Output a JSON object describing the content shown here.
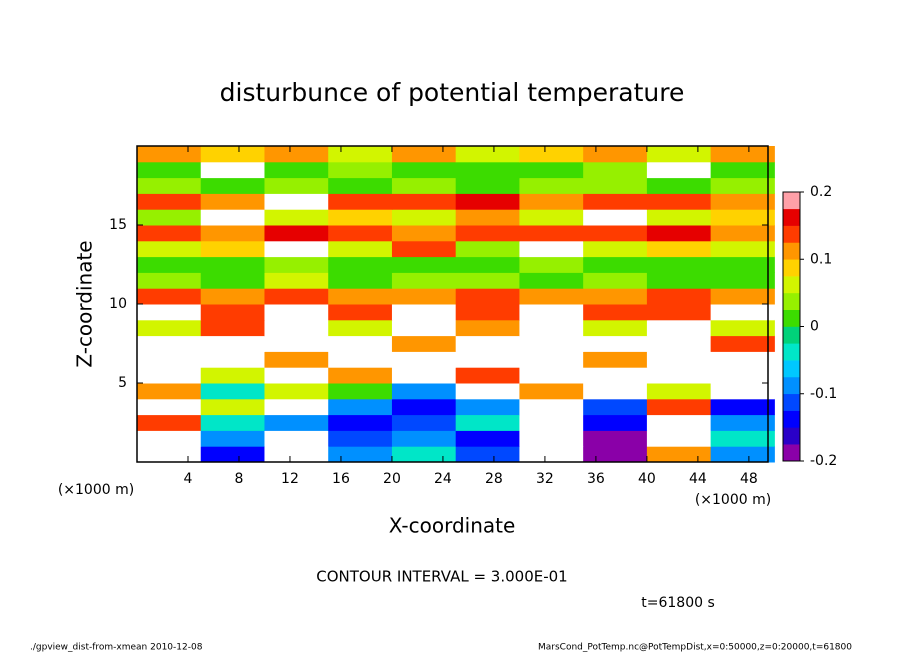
{
  "chart_data": {
    "type": "heatmap",
    "title": "disturbunce of potential temperature",
    "xlabel": "X-coordinate",
    "ylabel": "Z-coordinate",
    "x_unit_label": "(×1000 m)",
    "y_unit_label": "(×1000 m)",
    "contour_interval": "CONTOUR INTERVAL = 3.000E-01",
    "time_label": "t=61800 s",
    "footer_left": "./gpview_dist-from-xmean  2010-12-08",
    "footer_right": "MarsCond_PotTemp.nc@PotTempDist,x=0:50000,z=0:20000,t=61800",
    "xlim": [
      0,
      49.5
    ],
    "ylim": [
      0,
      20
    ],
    "xticks": [
      4,
      8,
      12,
      16,
      20,
      24,
      28,
      32,
      36,
      40,
      44,
      48
    ],
    "yticks": [
      5,
      10,
      15
    ],
    "x": [
      2.5,
      7.5,
      12.5,
      17.5,
      22.5,
      27.5,
      32.5,
      37.5,
      42.5,
      47.5
    ],
    "y": [
      0.5,
      1.5,
      2.5,
      3.5,
      4.5,
      5.5,
      6.5,
      7.5,
      8.5,
      9.5,
      10.5,
      11.5,
      12.5,
      13.5,
      14.5,
      15.5,
      16.5,
      17.5,
      18.5,
      19.5
    ],
    "z": [
      [
        0.22,
        -0.15,
        0.22,
        -0.1,
        -0.05,
        -0.12,
        0.22,
        -0.2,
        0.1,
        -0.1
      ],
      [
        0.22,
        -0.1,
        0.22,
        -0.12,
        -0.1,
        -0.15,
        0.22,
        -0.18,
        0.22,
        -0.05
      ],
      [
        0.15,
        -0.05,
        -0.1,
        -0.15,
        -0.12,
        -0.05,
        0.22,
        -0.15,
        0.22,
        -0.1
      ],
      [
        0.22,
        0.05,
        0.22,
        -0.08,
        -0.15,
        -0.1,
        0.22,
        -0.12,
        0.15,
        -0.15
      ],
      [
        0.1,
        -0.05,
        0.05,
        0,
        -0.1,
        0.22,
        0.1,
        0.22,
        0.05,
        0.22
      ],
      [
        0.22,
        0.05,
        0.22,
        0.1,
        0.22,
        0.15,
        0.22,
        0.22,
        0.22,
        0.22
      ],
      [
        0.22,
        0.22,
        0.1,
        0.22,
        0.22,
        0.22,
        0.22,
        0.1,
        0.22,
        0.22
      ],
      [
        0.22,
        0.22,
        0.22,
        0.22,
        0.1,
        0.22,
        0.22,
        0.22,
        0.22,
        0.15
      ],
      [
        0.05,
        0.15,
        0.22,
        0.05,
        0.22,
        0.1,
        0.22,
        0.05,
        0.22,
        0.05
      ],
      [
        0.22,
        0.15,
        0.22,
        0.15,
        0.22,
        0.15,
        0.2,
        0.15,
        0.15,
        0.22
      ],
      [
        0.15,
        0.12,
        0.15,
        0.1,
        0.12,
        0.15,
        0.12,
        0.1,
        0.15,
        0.12
      ],
      [
        0.03,
        0.02,
        0.05,
        0.01,
        0.03,
        0.04,
        0.02,
        0.03,
        0.01,
        0.02
      ],
      [
        0,
        0.02,
        0.03,
        0,
        0.01,
        0,
        0.03,
        0.02,
        0,
        0.01
      ],
      [
        0.06,
        0.08,
        0.22,
        0.05,
        0.15,
        0.04,
        0.22,
        0.05,
        0.08,
        0.05
      ],
      [
        0.15,
        0.12,
        0.16,
        0.14,
        0.12,
        0.15,
        0.14,
        0.13,
        0.16,
        0.12
      ],
      [
        0.04,
        0.22,
        0.06,
        0.08,
        0.05,
        0.1,
        0.06,
        0.22,
        0.05,
        0.08
      ],
      [
        0.15,
        0.12,
        0.22,
        0.15,
        0.14,
        0.16,
        0.12,
        0.14,
        0.15,
        0.12
      ],
      [
        0.03,
        0.02,
        0.04,
        0.02,
        0.03,
        0.02,
        0.04,
        0.03,
        0.02,
        0.03
      ],
      [
        0.02,
        0.22,
        0,
        0.04,
        0.01,
        0.02,
        0,
        0.03,
        0.22,
        0.02
      ],
      [
        0.1,
        0.08,
        0.12,
        0.05,
        0.1,
        0.06,
        0.08,
        0.1,
        0.05,
        0.12
      ]
    ],
    "colorbar": {
      "lim": [
        -0.2,
        0.2
      ],
      "ticks": [
        -0.2,
        -0.1,
        0,
        0.1,
        0.2
      ],
      "colors": [
        "#8a00a8",
        "#2a00c8",
        "#0000ff",
        "#0048ff",
        "#0090ff",
        "#00c8ff",
        "#00e6c8",
        "#00d27a",
        "#3cdc00",
        "#96f000",
        "#d2f500",
        "#ffd200",
        "#ff9600",
        "#ff3c00",
        "#e60000",
        "#ffa0a8"
      ],
      "above_color": "#ffffff"
    }
  }
}
